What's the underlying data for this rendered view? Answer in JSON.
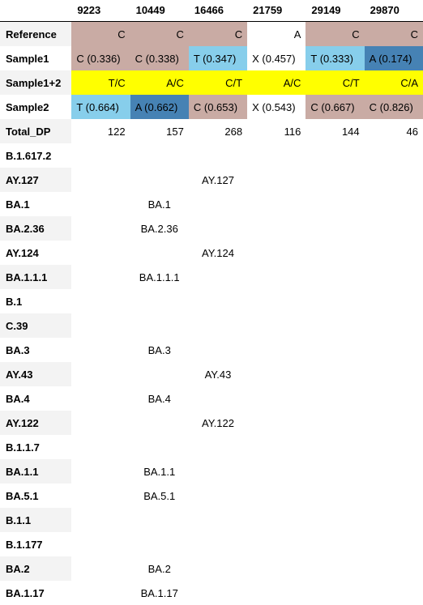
{
  "positions": [
    "9223",
    "10449",
    "16466",
    "21759",
    "29149",
    "29870"
  ],
  "colors": {
    "reference": "#c9aba4",
    "light_blue": "#87ceeb",
    "steel_blue": "#4682b4",
    "yellow": "#ffff00",
    "white": "#ffffff"
  },
  "rows": {
    "reference": {
      "label": "Reference",
      "cells": [
        "C",
        "C",
        "C",
        "A",
        "C",
        "C"
      ]
    },
    "sample1": {
      "label": "Sample1",
      "cells": [
        "C (0.336)",
        "C (0.338)",
        "T (0.347)",
        "X (0.457)",
        "T (0.333)",
        "A (0.174)"
      ]
    },
    "sample12": {
      "label": "Sample1+2",
      "cells": [
        "T/C",
        "A/C",
        "C/T",
        "A/C",
        "C/T",
        "C/A"
      ]
    },
    "sample2": {
      "label": "Sample2",
      "cells": [
        "T (0.664)",
        "A (0.662)",
        "C (0.653)",
        "X (0.543)",
        "C (0.667)",
        "C (0.826)"
      ]
    },
    "total_dp": {
      "label": "Total_DP",
      "cells": [
        "122",
        "157",
        "268",
        "116",
        "144",
        "46"
      ]
    }
  },
  "lineages": [
    {
      "label": "B.1.617.2",
      "cells": [
        "",
        "",
        "",
        "",
        "",
        ""
      ]
    },
    {
      "label": "AY.127",
      "cells": [
        "",
        "",
        "AY.127",
        "",
        "",
        ""
      ]
    },
    {
      "label": "BA.1",
      "cells": [
        "",
        "BA.1",
        "",
        "",
        "",
        ""
      ]
    },
    {
      "label": "BA.2.36",
      "cells": [
        "",
        "BA.2.36",
        "",
        "",
        "",
        ""
      ]
    },
    {
      "label": "AY.124",
      "cells": [
        "",
        "",
        "AY.124",
        "",
        "",
        ""
      ]
    },
    {
      "label": "BA.1.1.1",
      "cells": [
        "",
        "BA.1.1.1",
        "",
        "",
        "",
        ""
      ]
    },
    {
      "label": "B.1",
      "cells": [
        "",
        "",
        "",
        "",
        "",
        ""
      ]
    },
    {
      "label": "C.39",
      "cells": [
        "",
        "",
        "",
        "",
        "",
        ""
      ]
    },
    {
      "label": "BA.3",
      "cells": [
        "",
        "BA.3",
        "",
        "",
        "",
        ""
      ]
    },
    {
      "label": "AY.43",
      "cells": [
        "",
        "",
        "AY.43",
        "",
        "",
        ""
      ]
    },
    {
      "label": "BA.4",
      "cells": [
        "",
        "BA.4",
        "",
        "",
        "",
        ""
      ]
    },
    {
      "label": "AY.122",
      "cells": [
        "",
        "",
        "AY.122",
        "",
        "",
        ""
      ]
    },
    {
      "label": "B.1.1.7",
      "cells": [
        "",
        "",
        "",
        "",
        "",
        ""
      ]
    },
    {
      "label": "BA.1.1",
      "cells": [
        "",
        "BA.1.1",
        "",
        "",
        "",
        ""
      ]
    },
    {
      "label": "BA.5.1",
      "cells": [
        "",
        "BA.5.1",
        "",
        "",
        "",
        ""
      ]
    },
    {
      "label": "B.1.1",
      "cells": [
        "",
        "",
        "",
        "",
        "",
        ""
      ]
    },
    {
      "label": "B.1.177",
      "cells": [
        "",
        "",
        "",
        "",
        "",
        ""
      ]
    },
    {
      "label": "BA.2",
      "cells": [
        "",
        "BA.2",
        "",
        "",
        "",
        ""
      ]
    },
    {
      "label": "BA.1.17",
      "cells": [
        "",
        "BA.1.17",
        "",
        "",
        "",
        ""
      ]
    }
  ]
}
